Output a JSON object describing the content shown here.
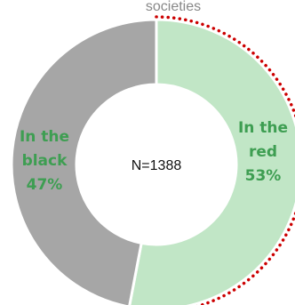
{
  "chart_data": {
    "type": "pie",
    "variant": "donut",
    "title": "societies",
    "center_label": "N=1388",
    "slices": [
      {
        "label_lines": [
          "In the",
          "red",
          "53%"
        ],
        "value": 53,
        "color": "#c1e6c6",
        "label_color": "#3e9e52",
        "border": "dotted",
        "border_color": "#cc0000"
      },
      {
        "label_lines": [
          "In the",
          "black",
          "47%"
        ],
        "value": 47,
        "color": "#a6a6a6",
        "label_color": "#3e9e52",
        "border": "none"
      }
    ]
  }
}
